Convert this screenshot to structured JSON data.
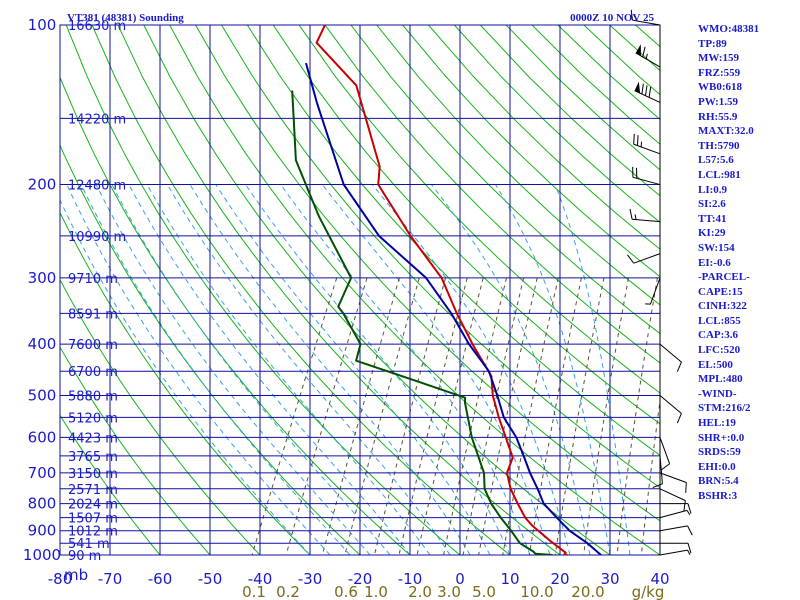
{
  "header": {
    "station": "VT381 (48381) Sounding",
    "time": "0000Z 10 NOV 25"
  },
  "chart_data": {
    "type": "line",
    "pressure_ticks": [
      100,
      200,
      300,
      400,
      500,
      600,
      700,
      800,
      900,
      1000
    ],
    "pressure_unit": "mb",
    "temp_ticks": [
      -80,
      -70,
      -60,
      -50,
      -40,
      -30,
      -20,
      -10,
      0,
      10,
      20,
      30,
      40
    ],
    "mixing_ratio_ticks": [
      "0.1",
      "0.2",
      "0.6",
      "1.0",
      "2.0",
      "3.0",
      "5.0",
      "10.0",
      "20.0",
      "g/kg"
    ],
    "height_labels": [
      {
        "p": 100,
        "label": "16630 m"
      },
      {
        "p": 150,
        "label": "14220 m"
      },
      {
        "p": 200,
        "label": "12480 m"
      },
      {
        "p": 250,
        "label": "10990 m"
      },
      {
        "p": 300,
        "label": "9710 m"
      },
      {
        "p": 350,
        "label": "8591 m"
      },
      {
        "p": 400,
        "label": "7600 m"
      },
      {
        "p": 450,
        "label": "6700 m"
      },
      {
        "p": 500,
        "label": "5880 m"
      },
      {
        "p": 550,
        "label": "5120 m"
      },
      {
        "p": 600,
        "label": "4423 m"
      },
      {
        "p": 650,
        "label": "3765 m"
      },
      {
        "p": 700,
        "label": "3150 m"
      },
      {
        "p": 750,
        "label": "2571 m"
      },
      {
        "p": 800,
        "label": "2024 m"
      },
      {
        "p": 850,
        "label": "1507 m"
      },
      {
        "p": 900,
        "label": "1012 m"
      },
      {
        "p": 950,
        "label": "541 m"
      },
      {
        "p": 1000,
        "label": "90 m"
      }
    ],
    "series": [
      {
        "key": "temperature",
        "color": "#c80000",
        "points": [
          [
            100,
            -80.0
          ],
          [
            108,
            -79.9
          ],
          [
            130,
            -67.7
          ],
          [
            185,
            -54.9
          ],
          [
            200,
            -53.4
          ],
          [
            250,
            -41.8
          ],
          [
            300,
            -31.4
          ],
          [
            350,
            -24.8
          ],
          [
            400,
            -18.6
          ],
          [
            460,
            -11.6
          ],
          [
            500,
            -9.4
          ],
          [
            550,
            -6.0
          ],
          [
            600,
            -2.6
          ],
          [
            655,
            0.8
          ],
          [
            700,
            1.2
          ],
          [
            750,
            3.5
          ],
          [
            800,
            6.4
          ],
          [
            850,
            9.3
          ],
          [
            880,
            11.5
          ],
          [
            940,
            16.6
          ],
          [
            990,
            20.9
          ],
          [
            998,
            20.8
          ],
          [
            1000,
            21.5
          ]
        ]
      },
      {
        "key": "parcel",
        "color": "#0000a0",
        "points": [
          [
            118,
            -80.0
          ],
          [
            140,
            -73.9
          ],
          [
            200,
            -60.3
          ],
          [
            250,
            -48.1
          ],
          [
            300,
            -34.5
          ],
          [
            350,
            -25.9
          ],
          [
            400,
            -19.3
          ],
          [
            450,
            -12.6
          ],
          [
            500,
            -8.5
          ],
          [
            550,
            -5.0
          ],
          [
            600,
            -0.5
          ],
          [
            650,
            2.8
          ],
          [
            700,
            5.8
          ],
          [
            750,
            8.9
          ],
          [
            800,
            11.6
          ],
          [
            850,
            15.6
          ],
          [
            900,
            19.5
          ],
          [
            950,
            24.3
          ],
          [
            1000,
            28.2
          ]
        ]
      },
      {
        "key": "dewpoint",
        "color": "#005000",
        "points": [
          [
            133,
            -80.0
          ],
          [
            180,
            -72.3
          ],
          [
            230,
            -62.0
          ],
          [
            300,
            -49.5
          ],
          [
            340,
            -49.2
          ],
          [
            350,
            -47.5
          ],
          [
            400,
            -41.0
          ],
          [
            430,
            -40.2
          ],
          [
            470,
            -26.0
          ],
          [
            505,
            -14.7
          ],
          [
            515,
            -14.3
          ],
          [
            600,
            -9.4
          ],
          [
            700,
            -3.4
          ],
          [
            750,
            -1.7
          ],
          [
            800,
            1.1
          ],
          [
            850,
            4.4
          ],
          [
            900,
            7.8
          ],
          [
            950,
            10.8
          ],
          [
            985,
            14.3
          ],
          [
            995,
            15.0
          ],
          [
            1000,
            18.5
          ]
        ]
      }
    ],
    "wind_barbs": [
      {
        "p": 100,
        "dir": 280,
        "spd": 10
      },
      {
        "p": 120,
        "dir": 300,
        "spd": 65
      },
      {
        "p": 140,
        "dir": 295,
        "spd": 80
      },
      {
        "p": 175,
        "dir": 290,
        "spd": 25
      },
      {
        "p": 200,
        "dir": 285,
        "spd": 20
      },
      {
        "p": 235,
        "dir": 275,
        "spd": 15
      },
      {
        "p": 270,
        "dir": 250,
        "spd": 10
      },
      {
        "p": 300,
        "dir": 200,
        "spd": 5
      },
      {
        "p": 400,
        "dir": 130,
        "spd": 10
      },
      {
        "p": 500,
        "dir": 130,
        "spd": 10
      },
      {
        "p": 600,
        "dir": 160,
        "spd": 10
      },
      {
        "p": 650,
        "dir": 175,
        "spd": 10
      },
      {
        "p": 700,
        "dir": 110,
        "spd": 10
      },
      {
        "p": 750,
        "dir": 115,
        "spd": 10
      },
      {
        "p": 800,
        "dir": 90,
        "spd": 10
      },
      {
        "p": 850,
        "dir": 75,
        "spd": 5
      },
      {
        "p": 900,
        "dir": 80,
        "spd": 10
      },
      {
        "p": 950,
        "dir": 90,
        "spd": 10
      },
      {
        "p": 1000,
        "dir": 80,
        "spd": 5
      }
    ]
  },
  "indices": [
    "WMO:48381",
    "TP:89",
    "MW:159",
    "FRZ:559",
    "WB0:618",
    "PW:1.59",
    "RH:55.9",
    "MAXT:32.0",
    "TH:5790",
    "L57:5.6",
    "LCL:981",
    "LI:0.9",
    "SI:2.6",
    "TT:41",
    "KI:29",
    "SW:154",
    "EI:-0.6",
    "-PARCEL-",
    "CAPE:15",
    "CINH:322",
    "LCL:855",
    "CAP:3.6",
    "LFC:520",
    "EL:500",
    "MPL:480",
    "-WIND-",
    "STM:216/2",
    "HEL:19",
    "SHR+:0.0",
    "SRDS:59",
    "EHI:0.0",
    "BRN:5.4",
    "BSHR:3"
  ]
}
